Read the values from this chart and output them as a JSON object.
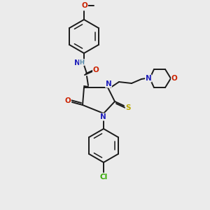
{
  "bg_color": "#ebebeb",
  "bond_color": "#1a1a1a",
  "atom_colors": {
    "N": "#2020bb",
    "O": "#cc2200",
    "S": "#bbaa00",
    "Cl": "#33aa00",
    "H": "#5588aa",
    "C": "#1a1a1a"
  },
  "figure_size": [
    3.0,
    3.0
  ],
  "dpi": 100
}
